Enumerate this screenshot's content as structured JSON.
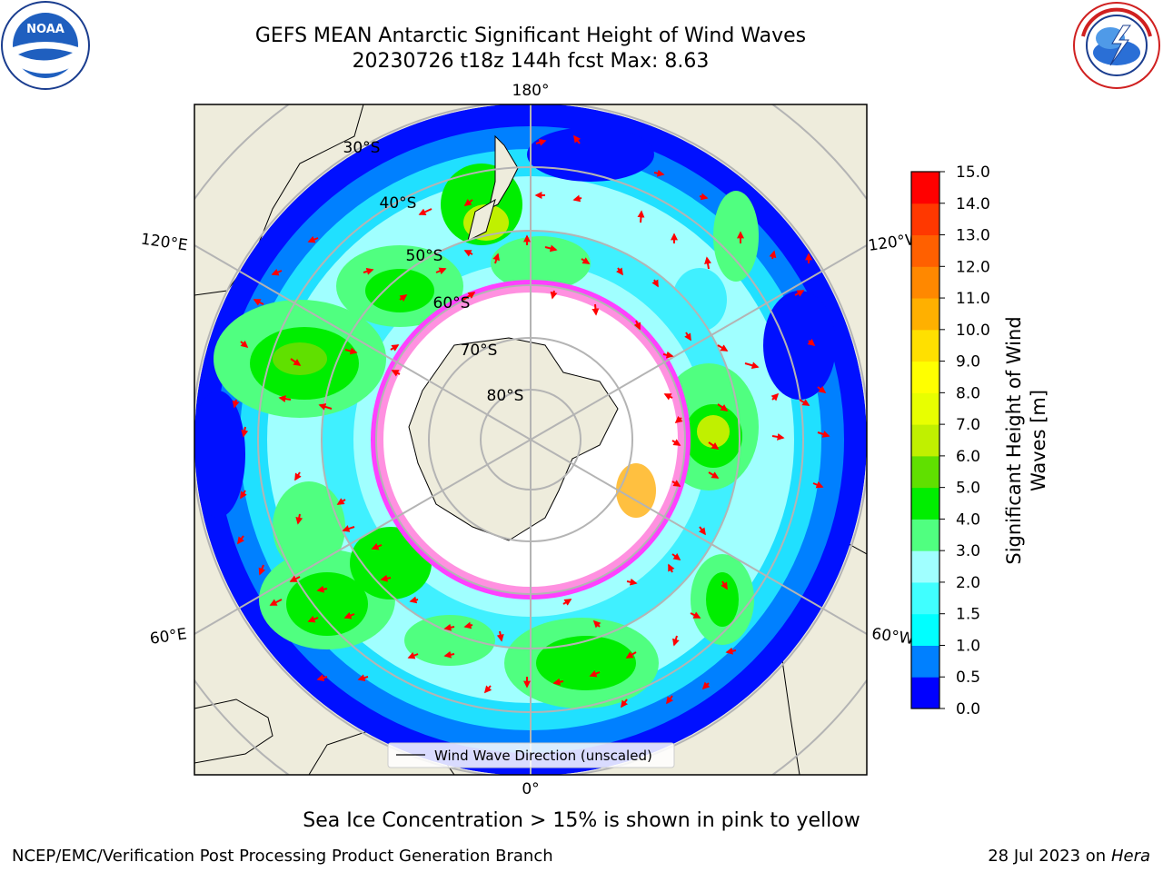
{
  "header": {
    "title_line1": "GEFS MEAN Antarctic Significant Height of Wind Waves",
    "title_line2": "20230726 t18z 144h fcst   Max: 8.63"
  },
  "logos": {
    "left": "noara-logo",
    "left_text": "NOAA",
    "left_ring_text": "NATIONAL OCEANIC AND ATMOSPHERIC ADMINISTRATION · U.S. DEPARTMENT OF COMMERCE",
    "right": "national-weather-service-logo",
    "right_ring_text": "NATIONAL WEATHER SERVICE"
  },
  "map": {
    "longitude_labels": [
      "180°",
      "120°E",
      "120°W",
      "60°E",
      "60°W",
      "0°"
    ],
    "latitude_labels": [
      "30°S",
      "40°S",
      "50°S",
      "60°S",
      "70°S",
      "80°S"
    ],
    "legend_label": "Wind Wave Direction (unscaled)",
    "colors": {
      "land": "#eeecdc",
      "ice": "#ffffff",
      "grid": "#b4b4b4",
      "arrow": "#ff0000"
    }
  },
  "colorbar": {
    "label_line1": "Significant Height of Wind",
    "label_line2": "Waves [m]",
    "ticks": [
      "0.0",
      "0.5",
      "1.0",
      "1.5",
      "2.0",
      "3.0",
      "4.0",
      "5.0",
      "6.0",
      "7.0",
      "8.0",
      "9.0",
      "10.0",
      "11.0",
      "12.0",
      "13.0",
      "14.0",
      "15.0"
    ],
    "colors": [
      "#0000ff",
      "#0080ff",
      "#00ffff",
      "#40ffff",
      "#a0ffff",
      "#50ff80",
      "#00ee00",
      "#60e000",
      "#c0f000",
      "#e8ff00",
      "#ffff00",
      "#ffe000",
      "#ffb000",
      "#ff8800",
      "#ff6000",
      "#ff3800",
      "#ff0000"
    ]
  },
  "footer": {
    "note": "Sea Ice Concentration > 15% is shown in pink to yellow",
    "left": "NCEP/EMC/Verification Post Processing Product Generation Branch",
    "right_date": "28 Jul 2023 on",
    "right_machine": "Hera"
  }
}
